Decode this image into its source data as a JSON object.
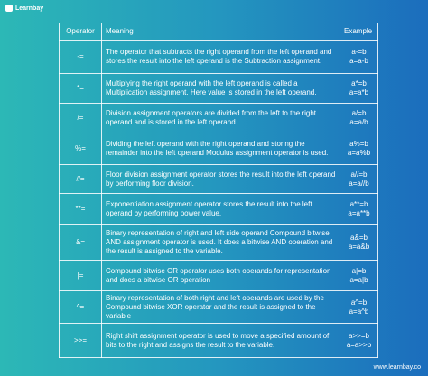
{
  "logo": "Learnbay",
  "table": {
    "headers": [
      "Operator",
      "Meaning",
      "Example"
    ],
    "rows": [
      {
        "operator": "-=",
        "meaning": "The operator that subtracts the right operand from the left operand and stores the result into the left operand is the Subtraction assignment.",
        "example": [
          "a-=b",
          "a=a-b"
        ]
      },
      {
        "operator": "*=",
        "meaning": "Multiplying the right operand with the left operand is called a Multiplication assignment. Here value is stored in the left operand.",
        "example": [
          "a*=b",
          "a=a*b"
        ]
      },
      {
        "operator": "/=",
        "meaning": "Division assignment operators are divided from the left to the right operand and is stored in the left operand.",
        "example": [
          "a/=b",
          "a=a/b"
        ]
      },
      {
        "operator": "%=",
        "meaning": "Dividing the left operand with the right operand and storing the remainder into the left operand Modulus assignment operator is used.",
        "example": [
          "a%=b",
          "a=a%b"
        ]
      },
      {
        "operator": "//=",
        "meaning": "Floor division assignment operator stores the result into the left operand by performing floor division.",
        "example": [
          "a//=b",
          "a=a//b"
        ]
      },
      {
        "operator": "**=",
        "meaning": "Exponentiation assignment operator stores the result into the left operand by performing power value.",
        "example": [
          "a**=b",
          "a=a**b"
        ]
      },
      {
        "operator": "&=",
        "meaning": "Binary representation of right and left side operand Compound bitwise AND assignment operator is used. It does a bitwise AND operation and the result is assigned to the variable.",
        "example": [
          "a&=b",
          "a=a&b"
        ]
      },
      {
        "operator": "|=",
        "meaning": "Compound bitwise OR operator uses both operands for representation and does a bitwise OR operation",
        "example": [
          "a|=b",
          "a=a|b"
        ]
      },
      {
        "operator": "^=",
        "meaning": "Binary representation of both right and left operands are used by the Compound bitwise XOR operator and the result is assigned to the variable",
        "example": [
          "a^=b",
          "a=a^b"
        ]
      },
      {
        "operator": ">>=",
        "meaning": "Right shift assignment operator is used to move a specified amount of bits to the right and assigns the result to the variable.",
        "example": [
          "a>>=b",
          "a=a>>b"
        ]
      }
    ]
  },
  "footer": "www.learnbay.co"
}
